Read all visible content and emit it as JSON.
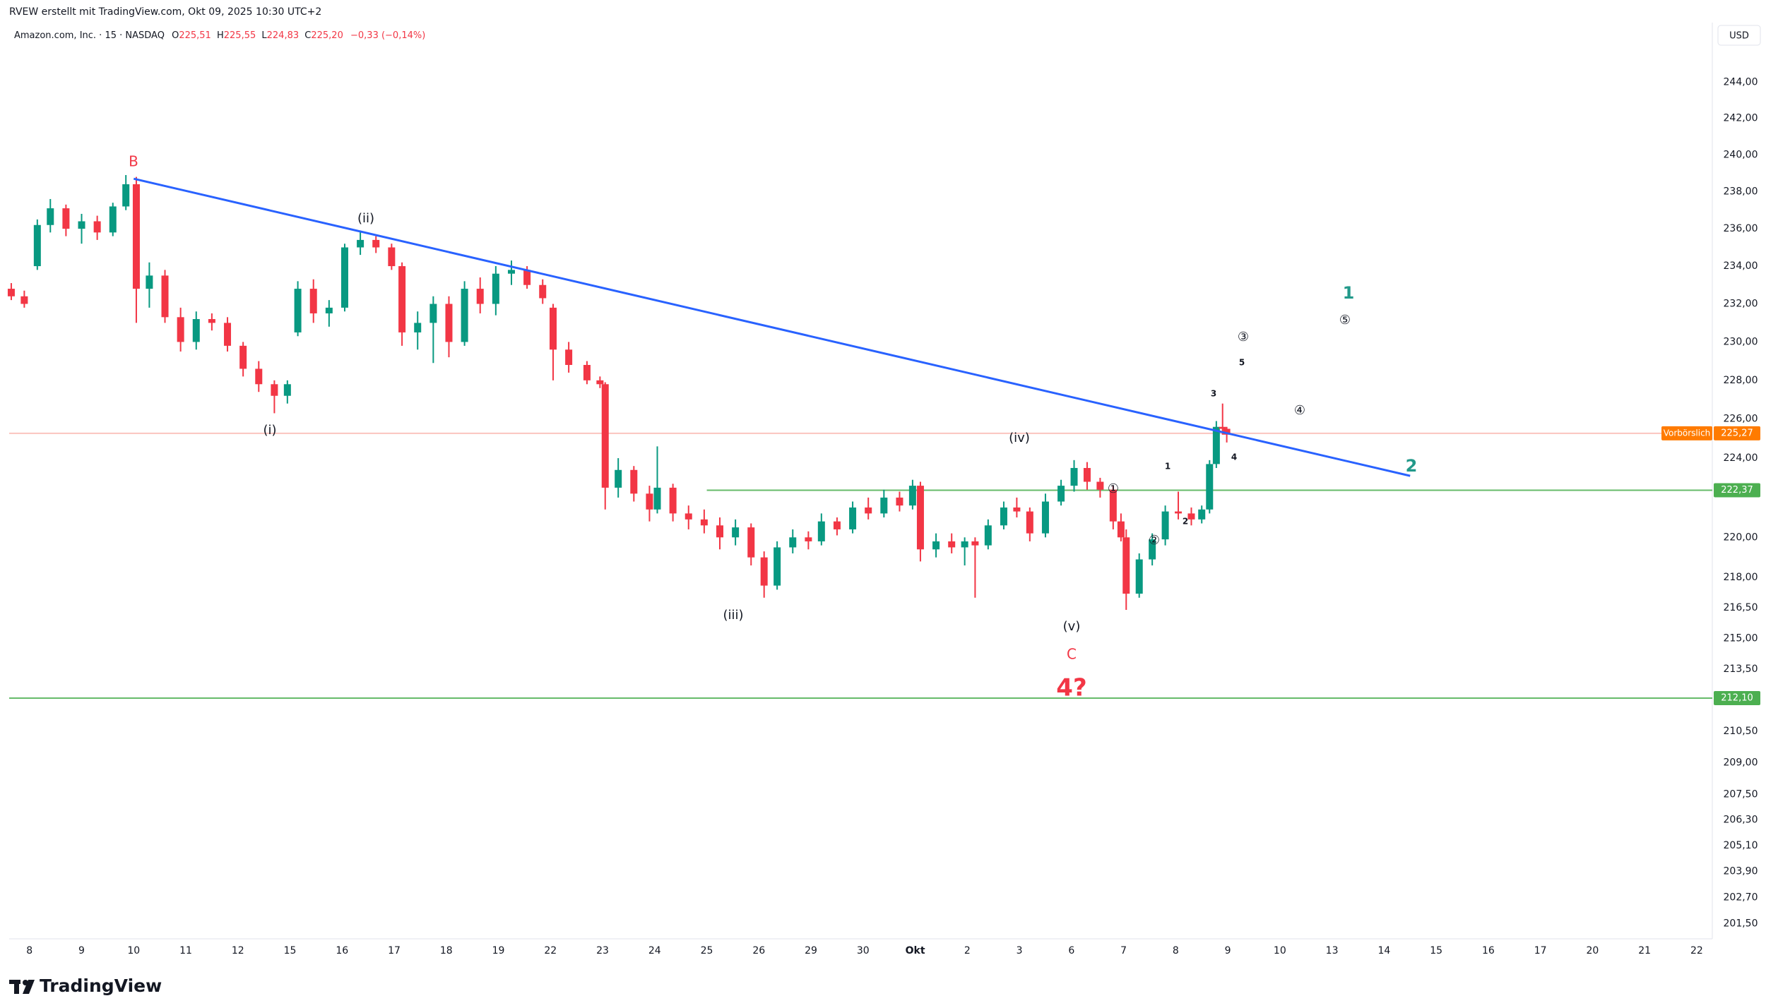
{
  "chart_data": {
    "type": "candlestick",
    "header": "RVEW erstellt mit TradingView.com, Okt 09, 2025 10:30 UTC+2",
    "symbol": "Amazon.com, Inc. · 15 · NASDAQ",
    "ohlc_legend": [
      {
        "key": "O",
        "value": "225,51"
      },
      {
        "key": "H",
        "value": "225,55"
      },
      {
        "key": "L",
        "value": "224,83"
      },
      {
        "key": "C",
        "value": "225,20"
      }
    ],
    "change": "−0,33 (−0,14%)",
    "currency": "USD",
    "brand": "TradingView",
    "log_scale": true,
    "up_color": "#089981",
    "down_color": "#f23645",
    "xlim": [
      -0.39,
      32.3
    ],
    "ylim": [
      200.8,
      247.33
    ],
    "xticks": [
      {
        "value": 0,
        "label": "8"
      },
      {
        "value": 1,
        "label": "9"
      },
      {
        "value": 2,
        "label": "10"
      },
      {
        "value": 3,
        "label": "11"
      },
      {
        "value": 4,
        "label": "12"
      },
      {
        "value": 5,
        "label": "15"
      },
      {
        "value": 6,
        "label": "16"
      },
      {
        "value": 7,
        "label": "17"
      },
      {
        "value": 8,
        "label": "18"
      },
      {
        "value": 9,
        "label": "19"
      },
      {
        "value": 10,
        "label": "22"
      },
      {
        "value": 11,
        "label": "23"
      },
      {
        "value": 12,
        "label": "24"
      },
      {
        "value": 13,
        "label": "25"
      },
      {
        "value": 14,
        "label": "26"
      },
      {
        "value": 15,
        "label": "29"
      },
      {
        "value": 16,
        "label": "30"
      },
      {
        "value": 17,
        "label": "Okt"
      },
      {
        "value": 18,
        "label": "2"
      },
      {
        "value": 19,
        "label": "3"
      },
      {
        "value": 20,
        "label": "6"
      },
      {
        "value": 21,
        "label": "7"
      },
      {
        "value": 22,
        "label": "8"
      },
      {
        "value": 23,
        "label": "9"
      },
      {
        "value": 24,
        "label": "10"
      },
      {
        "value": 25,
        "label": "13"
      },
      {
        "value": 26,
        "label": "14"
      },
      {
        "value": 27,
        "label": "15"
      },
      {
        "value": 28,
        "label": "16"
      },
      {
        "value": 29,
        "label": "17"
      },
      {
        "value": 30,
        "label": "20"
      },
      {
        "value": 31,
        "label": "21"
      },
      {
        "value": 32,
        "label": "22"
      }
    ],
    "yticks": [
      {
        "value": 244,
        "label": "244,00"
      },
      {
        "value": 242,
        "label": "242,00"
      },
      {
        "value": 240,
        "label": "240,00"
      },
      {
        "value": 238,
        "label": "238,00"
      },
      {
        "value": 236,
        "label": "236,00"
      },
      {
        "value": 234,
        "label": "234,00"
      },
      {
        "value": 232,
        "label": "232,00"
      },
      {
        "value": 230,
        "label": "230,00"
      },
      {
        "value": 228,
        "label": "228,00"
      },
      {
        "value": 226,
        "label": "226,00"
      },
      {
        "value": 224,
        "label": "224,00"
      },
      {
        "value": 220,
        "label": "220,00"
      },
      {
        "value": 218,
        "label": "218,00"
      },
      {
        "value": 216.5,
        "label": "216,50"
      },
      {
        "value": 215,
        "label": "215,00"
      },
      {
        "value": 213.5,
        "label": "213,50"
      },
      {
        "value": 210.5,
        "label": "210,50"
      },
      {
        "value": 209,
        "label": "209,00"
      },
      {
        "value": 207.5,
        "label": "207,50"
      },
      {
        "value": 206.3,
        "label": "206,30"
      },
      {
        "value": 205.1,
        "label": "205,10"
      },
      {
        "value": 203.9,
        "label": "203,90"
      },
      {
        "value": 202.7,
        "label": "202,70"
      },
      {
        "value": 201.5,
        "label": "201,50"
      }
    ],
    "candles": {
      "x": [
        -0.35,
        -0.1,
        0.15,
        0.4,
        0.7,
        1.0,
        1.3,
        1.6,
        1.85,
        2.05,
        2.3,
        2.6,
        2.9,
        3.2,
        3.5,
        3.8,
        4.1,
        4.4,
        4.7,
        4.95,
        5.15,
        5.45,
        5.75,
        6.05,
        6.35,
        6.65,
        6.95,
        7.15,
        7.45,
        7.75,
        8.05,
        8.35,
        8.65,
        8.95,
        9.25,
        9.55,
        9.85,
        10.05,
        10.35,
        10.7,
        10.95,
        11.05,
        11.3,
        11.6,
        11.9,
        12.05,
        12.35,
        12.65,
        12.95,
        13.25,
        13.55,
        13.85,
        14.1,
        14.35,
        14.65,
        14.95,
        15.2,
        15.5,
        15.8,
        16.1,
        16.4,
        16.7,
        16.95,
        17.1,
        17.4,
        17.7,
        17.95,
        18.15,
        18.4,
        18.7,
        18.95,
        19.2,
        19.5,
        19.8,
        20.05,
        20.3,
        20.55,
        20.8,
        20.95,
        21.05,
        21.3,
        21.55,
        21.8,
        22.05,
        22.3,
        22.5,
        22.65,
        22.78,
        22.9,
        22.98
      ],
      "open": [
        232.8,
        232.4,
        234.0,
        236.2,
        237.1,
        236.0,
        236.4,
        235.8,
        237.2,
        238.4,
        232.8,
        233.5,
        231.3,
        230.0,
        231.2,
        231.0,
        229.8,
        228.6,
        227.8,
        227.2,
        230.5,
        232.8,
        231.5,
        231.8,
        235.0,
        235.4,
        235.0,
        234.0,
        230.5,
        231.0,
        232.0,
        230.0,
        232.8,
        232.0,
        233.6,
        233.8,
        233.0,
        231.8,
        229.6,
        228.8,
        228.0,
        227.8,
        222.5,
        223.4,
        222.2,
        221.4,
        222.5,
        221.2,
        220.9,
        220.6,
        220.0,
        220.5,
        219.0,
        217.6,
        219.5,
        220.0,
        219.8,
        220.8,
        220.4,
        221.5,
        221.2,
        222.0,
        221.6,
        222.6,
        219.4,
        219.8,
        219.5,
        219.8,
        219.6,
        220.6,
        221.5,
        221.3,
        220.2,
        221.8,
        222.6,
        223.5,
        222.8,
        222.4,
        220.8,
        220.0,
        217.2,
        218.9,
        219.9,
        221.3,
        221.2,
        220.9,
        221.4,
        223.7,
        225.6,
        225.5
      ],
      "high": [
        233.1,
        232.7,
        236.5,
        237.6,
        237.3,
        236.8,
        236.7,
        237.4,
        238.9,
        238.8,
        234.2,
        233.8,
        231.8,
        231.6,
        231.5,
        231.3,
        230.0,
        229.0,
        228.0,
        228.0,
        233.2,
        233.3,
        232.2,
        235.2,
        235.9,
        235.6,
        235.2,
        234.2,
        231.6,
        232.4,
        232.4,
        233.2,
        233.4,
        234.0,
        234.3,
        234.0,
        233.3,
        232.0,
        230.0,
        229.0,
        228.2,
        227.9,
        224.0,
        223.6,
        222.6,
        224.6,
        222.7,
        221.6,
        221.4,
        221.0,
        220.9,
        220.7,
        219.3,
        219.8,
        220.4,
        220.3,
        221.2,
        221.0,
        221.8,
        222.0,
        222.4,
        222.3,
        222.9,
        222.8,
        220.2,
        220.2,
        220.0,
        220.0,
        220.9,
        221.8,
        222.0,
        221.5,
        222.2,
        222.9,
        223.9,
        223.8,
        223.0,
        222.6,
        221.2,
        220.4,
        219.2,
        220.2,
        221.6,
        222.3,
        221.5,
        221.6,
        223.9,
        225.9,
        226.8,
        225.6
      ],
      "low": [
        232.2,
        231.8,
        233.8,
        235.8,
        235.6,
        235.2,
        235.4,
        235.6,
        237.0,
        231.0,
        231.8,
        231.0,
        229.5,
        229.6,
        230.6,
        229.5,
        228.2,
        227.4,
        226.3,
        226.8,
        230.3,
        231.0,
        230.8,
        231.6,
        234.6,
        234.7,
        233.8,
        229.8,
        229.6,
        228.9,
        229.2,
        229.8,
        231.5,
        231.4,
        233.0,
        232.8,
        232.0,
        228.0,
        228.4,
        227.8,
        227.6,
        221.4,
        222.0,
        221.8,
        220.8,
        221.2,
        220.8,
        220.4,
        220.2,
        219.4,
        219.6,
        218.6,
        217.0,
        217.4,
        219.2,
        219.4,
        219.6,
        220.1,
        220.2,
        220.9,
        221.0,
        221.3,
        221.4,
        218.8,
        219.0,
        219.2,
        218.6,
        217.0,
        219.4,
        220.4,
        221.0,
        219.8,
        220.0,
        221.6,
        222.3,
        222.4,
        222.0,
        220.4,
        219.8,
        216.4,
        217.0,
        218.6,
        219.6,
        220.9,
        220.6,
        220.7,
        221.2,
        223.5,
        225.2,
        224.8
      ],
      "close": [
        232.4,
        232.0,
        236.2,
        237.1,
        236.0,
        236.4,
        235.8,
        237.2,
        238.4,
        232.8,
        233.5,
        231.3,
        230.0,
        231.2,
        231.0,
        229.8,
        228.6,
        227.8,
        227.2,
        227.8,
        232.8,
        231.5,
        231.8,
        235.0,
        235.4,
        235.0,
        234.0,
        230.5,
        231.0,
        232.0,
        230.0,
        232.8,
        232.0,
        233.6,
        233.8,
        233.0,
        232.3,
        229.6,
        228.8,
        228.0,
        227.8,
        222.5,
        223.4,
        222.2,
        221.4,
        222.5,
        221.2,
        220.9,
        220.6,
        220.0,
        220.5,
        219.0,
        217.6,
        219.5,
        220.0,
        219.8,
        220.8,
        220.4,
        221.5,
        221.2,
        222.0,
        221.6,
        222.6,
        219.4,
        219.8,
        219.5,
        219.8,
        219.6,
        220.6,
        221.5,
        221.3,
        220.2,
        221.8,
        222.6,
        223.5,
        222.8,
        222.4,
        220.8,
        220.0,
        217.2,
        218.9,
        219.9,
        221.3,
        221.2,
        220.9,
        221.4,
        223.7,
        225.6,
        225.5,
        225.2
      ]
    },
    "trendline": {
      "x": [
        2.0,
        26.5
      ],
      "y": [
        238.7,
        223.1
      ],
      "color": "#2962ff"
    },
    "levels": [
      {
        "value": 225.27,
        "label": "225,27",
        "tag": "Vorbörslich",
        "color": "#fbc4bf",
        "badge_color": "#ff7b00"
      },
      {
        "value": 222.37,
        "label": "222,37",
        "x_start": 13,
        "color": "#66bb6a",
        "badge_color": "#4caf50"
      },
      {
        "value": 212.1,
        "label": "212,10",
        "color": "#66bb6a",
        "badge_color": "#4caf50"
      }
    ],
    "annotations": [
      "B",
      "(ii)",
      "(i)",
      "(iii)",
      "(iv)",
      "(v)",
      "C",
      "4?",
      "①",
      "②",
      "③",
      "④",
      "⑤",
      "1",
      "2",
      "3",
      "4",
      "5",
      "1",
      "2"
    ]
  }
}
